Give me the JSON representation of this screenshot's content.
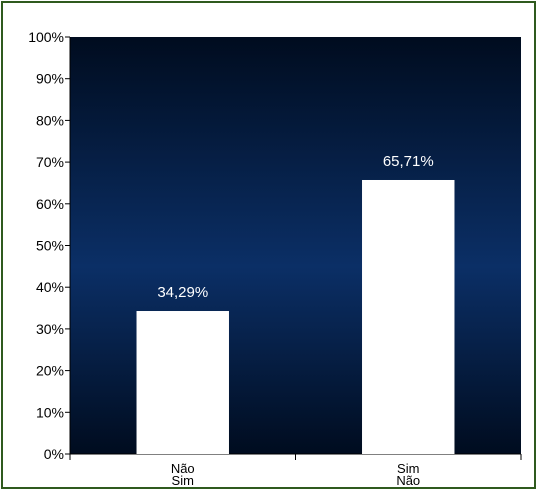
{
  "chart_data": {
    "type": "bar",
    "categories": [
      "Não",
      "Sim"
    ],
    "values": [
      34.29,
      65.71
    ],
    "data_labels": [
      "34,29%",
      "65,71%"
    ],
    "ghost_categories": [
      "Sim",
      "Não"
    ],
    "ylim": [
      0,
      100
    ],
    "y_ticks": [
      0,
      10,
      20,
      30,
      40,
      50,
      60,
      70,
      80,
      90,
      100
    ],
    "y_tick_labels": [
      "0%",
      "10%",
      "20%",
      "30%",
      "40%",
      "50%",
      "60%",
      "70%",
      "80%",
      "90%",
      "100%"
    ],
    "grid": false,
    "legend": "none",
    "title": "",
    "xlabel": "",
    "ylabel": ""
  },
  "colors": {
    "plot_background_top": "#000c1f",
    "plot_background_mid": "#0b2f66",
    "plot_background_bottom": "#000c1f",
    "bar_fill": "#ffffff",
    "frame_border": "#2f5a1e"
  }
}
